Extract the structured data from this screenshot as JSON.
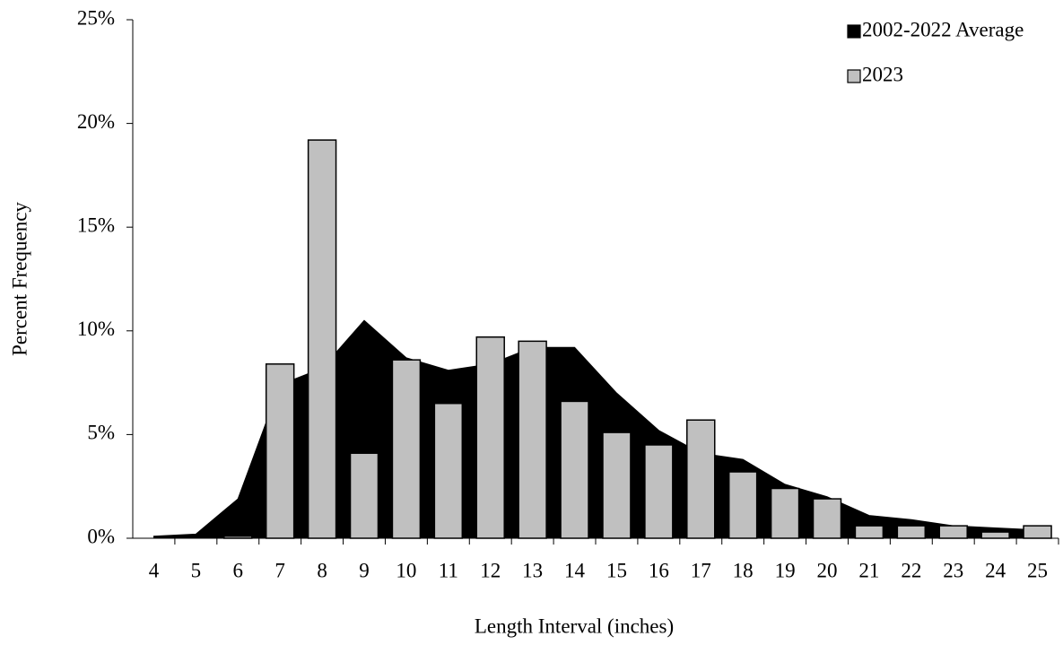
{
  "chart_data": {
    "type": "bar",
    "x_label": "Length Interval (inches)",
    "y_label": "Percent Frequency",
    "categories": [
      "4",
      "5",
      "6",
      "7",
      "8",
      "9",
      "10",
      "11",
      "12",
      "13",
      "14",
      "15",
      "16",
      "17",
      "18",
      "19",
      "20",
      "21",
      "22",
      "23",
      "24",
      "25"
    ],
    "series": [
      {
        "name": "2002-2022 Average",
        "type": "area",
        "color": "#000000",
        "values": [
          0.1,
          0.2,
          1.9,
          7.4,
          8.2,
          10.5,
          8.7,
          8.1,
          8.4,
          9.2,
          9.2,
          7.0,
          5.2,
          4.1,
          3.8,
          2.6,
          2.0,
          1.1,
          0.9,
          0.6,
          0.5,
          0.4
        ]
      },
      {
        "name": "2023",
        "type": "bar",
        "color": "#c0c0c0",
        "values": [
          0,
          0,
          0.1,
          8.4,
          19.2,
          4.1,
          8.6,
          6.5,
          9.7,
          9.5,
          6.6,
          5.1,
          4.5,
          5.7,
          3.2,
          2.4,
          1.9,
          0.6,
          0.6,
          0.6,
          0.3,
          0.6
        ]
      }
    ],
    "ylim": [
      0,
      25
    ],
    "yticks": [
      {
        "value": 0,
        "label": "0%"
      },
      {
        "value": 5,
        "label": "5%"
      },
      {
        "value": 10,
        "label": "10%"
      },
      {
        "value": 15,
        "label": "15%"
      },
      {
        "value": 20,
        "label": "20%"
      },
      {
        "value": 25,
        "label": "25%"
      }
    ],
    "legend": "upper right"
  }
}
